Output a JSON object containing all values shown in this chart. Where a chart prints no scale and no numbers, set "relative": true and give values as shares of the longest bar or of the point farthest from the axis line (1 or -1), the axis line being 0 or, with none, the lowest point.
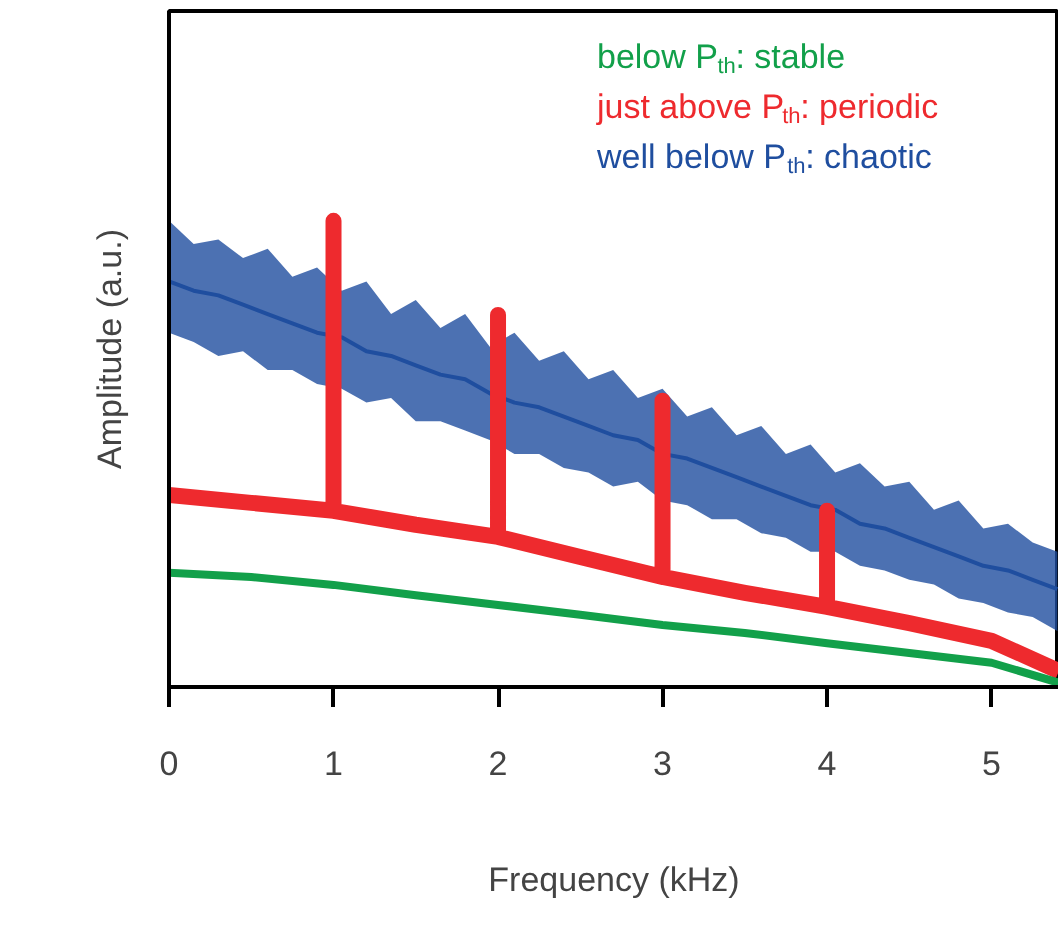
{
  "chart_data": {
    "type": "line",
    "relative": true,
    "xlabel": "Frequency (kHz)",
    "ylabel": "Amplitude (a.u.)",
    "xlim": [
      0,
      5.41
    ],
    "xticks": [
      0,
      1,
      2,
      3,
      4,
      5
    ],
    "grid": false,
    "marker": "none",
    "line_style": "solid",
    "series": [
      {
        "name": "below P$_{th}$: stable",
        "color": "#12a04a",
        "x": [
          0,
          0.5,
          1,
          1.5,
          2,
          2.5,
          3,
          3.5,
          4,
          4.5,
          5,
          5.41
        ],
        "values": [
          0.245,
          0.236,
          0.219,
          0.197,
          0.176,
          0.155,
          0.133,
          0.116,
          0.094,
          0.073,
          0.052,
          0.009
        ]
      },
      {
        "name": "just above P$_{th}$: periodic",
        "color": "#ee2a2e",
        "x": [
          0,
          0.5,
          1,
          1,
          1,
          1.5,
          2,
          2,
          2,
          2.5,
          3,
          3,
          3,
          3.5,
          4,
          4,
          4,
          4.5,
          5,
          5.41
        ],
        "values": [
          0.412,
          0.395,
          0.378,
          1.0,
          0.378,
          0.348,
          0.322,
          0.798,
          0.322,
          0.279,
          0.236,
          0.614,
          0.236,
          0.202,
          0.172,
          0.378,
          0.172,
          0.137,
          0.099,
          0.034
        ]
      },
      {
        "name": "well below P$_{th}$: chaotic",
        "color": "#1f4e9f",
        "x": [
          0,
          0.15,
          0.3,
          0.45,
          0.6,
          0.75,
          0.9,
          1.05,
          1.2,
          1.35,
          1.5,
          1.65,
          1.8,
          1.95,
          2.1,
          2.25,
          2.4,
          2.55,
          2.7,
          2.85,
          3.0,
          3.15,
          3.3,
          3.45,
          3.6,
          3.75,
          3.9,
          4.05,
          4.2,
          4.35,
          4.5,
          4.65,
          4.8,
          4.95,
          5.1,
          5.25,
          5.4
        ],
        "values": [
          0.87,
          0.85,
          0.84,
          0.82,
          0.8,
          0.78,
          0.76,
          0.75,
          0.72,
          0.71,
          0.69,
          0.67,
          0.66,
          0.63,
          0.61,
          0.6,
          0.58,
          0.56,
          0.54,
          0.53,
          0.5,
          0.49,
          0.47,
          0.45,
          0.43,
          0.41,
          0.39,
          0.38,
          0.35,
          0.34,
          0.32,
          0.3,
          0.28,
          0.26,
          0.25,
          0.23,
          0.21
        ],
        "lower": [
          0.76,
          0.74,
          0.71,
          0.72,
          0.68,
          0.68,
          0.65,
          0.64,
          0.61,
          0.62,
          0.57,
          0.57,
          0.55,
          0.53,
          0.5,
          0.5,
          0.47,
          0.46,
          0.43,
          0.44,
          0.4,
          0.39,
          0.36,
          0.36,
          0.33,
          0.32,
          0.29,
          0.29,
          0.26,
          0.25,
          0.23,
          0.22,
          0.19,
          0.18,
          0.16,
          0.15,
          0.12
        ],
        "upper": [
          1.0,
          0.95,
          0.96,
          0.92,
          0.94,
          0.88,
          0.9,
          0.85,
          0.87,
          0.8,
          0.83,
          0.77,
          0.8,
          0.73,
          0.76,
          0.7,
          0.72,
          0.66,
          0.68,
          0.62,
          0.64,
          0.58,
          0.6,
          0.54,
          0.56,
          0.5,
          0.52,
          0.46,
          0.48,
          0.43,
          0.44,
          0.38,
          0.4,
          0.34,
          0.35,
          0.31,
          0.29
        ]
      }
    ]
  }
}
